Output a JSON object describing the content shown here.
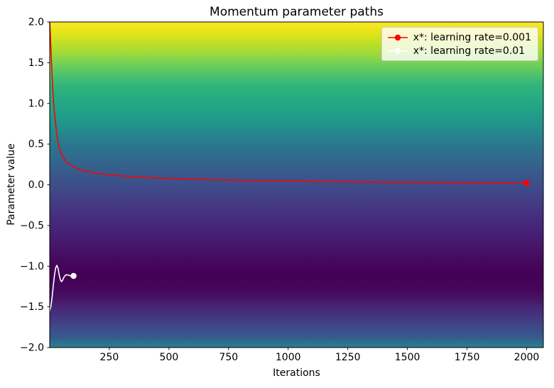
{
  "chart_data": {
    "type": "line",
    "title": "Momentum parameter paths",
    "xlabel": "Iterations",
    "ylabel": "Parameter value",
    "xlim": [
      0,
      2070
    ],
    "ylim": [
      -2.0,
      2.0
    ],
    "x_ticks": [
      250,
      500,
      750,
      1000,
      1250,
      1500,
      1750,
      2000
    ],
    "x_tick_labels": [
      "250",
      "500",
      "750",
      "1000",
      "1250",
      "1500",
      "1750",
      "2000"
    ],
    "y_ticks": [
      2.0,
      1.5,
      1.0,
      0.5,
      0.0,
      -0.5,
      -1.0,
      -1.5,
      -2.0
    ],
    "y_tick_labels": [
      "2.0",
      "1.5",
      "1.0",
      "0.5",
      "0.0",
      "−0.5",
      "−1.0",
      "−1.5",
      "−2.0"
    ],
    "grid": false,
    "legend_position": "upper right",
    "background_colormap": {
      "name": "viridis-vertical-loss-landscape",
      "note": "color encodes loss value as function of parameter value; darkest band near parameter -1.1",
      "stops": [
        [
          0.0,
          "#fde725"
        ],
        [
          0.03,
          "#e7e419"
        ],
        [
          0.06,
          "#c5e021"
        ],
        [
          0.095,
          "#9fda3a"
        ],
        [
          0.125,
          "#77d153"
        ],
        [
          0.16,
          "#4fc46a"
        ],
        [
          0.195,
          "#31b57b"
        ],
        [
          0.25,
          "#22a884"
        ],
        [
          0.3125,
          "#21948c"
        ],
        [
          0.375,
          "#2a788e"
        ],
        [
          0.4375,
          "#33638d"
        ],
        [
          0.5,
          "#3d4e8a"
        ],
        [
          0.5625,
          "#443983"
        ],
        [
          0.625,
          "#46257b"
        ],
        [
          0.69,
          "#471669"
        ],
        [
          0.735,
          "#46085e"
        ],
        [
          0.775,
          "#440154"
        ],
        [
          0.815,
          "#450559"
        ],
        [
          0.85,
          "#471365"
        ],
        [
          0.875,
          "#472575"
        ],
        [
          0.9375,
          "#3f4889"
        ],
        [
          0.97,
          "#365c8d"
        ],
        [
          1.0,
          "#26828e"
        ]
      ]
    },
    "series": [
      {
        "name": "x*: learning rate=0.001",
        "color": "#ff0000",
        "end_marker": [
          2000,
          0.022
        ],
        "points": [
          [
            0,
            2.0
          ],
          [
            3,
            1.82
          ],
          [
            6,
            1.6
          ],
          [
            9,
            1.4
          ],
          [
            12,
            1.22
          ],
          [
            15,
            1.07
          ],
          [
            18,
            0.95
          ],
          [
            21,
            0.85
          ],
          [
            25,
            0.74
          ],
          [
            30,
            0.6
          ],
          [
            35,
            0.52
          ],
          [
            40,
            0.455
          ],
          [
            45,
            0.41
          ],
          [
            50,
            0.375
          ],
          [
            60,
            0.32
          ],
          [
            70,
            0.285
          ],
          [
            80,
            0.258
          ],
          [
            90,
            0.237
          ],
          [
            100,
            0.22
          ],
          [
            120,
            0.195
          ],
          [
            140,
            0.177
          ],
          [
            160,
            0.162
          ],
          [
            180,
            0.151
          ],
          [
            200,
            0.141
          ],
          [
            250,
            0.122
          ],
          [
            300,
            0.109
          ],
          [
            350,
            0.099
          ],
          [
            400,
            0.091
          ],
          [
            450,
            0.084
          ],
          [
            500,
            0.078
          ],
          [
            600,
            0.068
          ],
          [
            700,
            0.061
          ],
          [
            800,
            0.055
          ],
          [
            900,
            0.05
          ],
          [
            1000,
            0.046
          ],
          [
            1100,
            0.042
          ],
          [
            1200,
            0.039
          ],
          [
            1300,
            0.036
          ],
          [
            1400,
            0.033
          ],
          [
            1500,
            0.031
          ],
          [
            1600,
            0.029
          ],
          [
            1700,
            0.027
          ],
          [
            1800,
            0.025
          ],
          [
            1900,
            0.024
          ],
          [
            2000,
            0.022
          ]
        ]
      },
      {
        "name": "x*: learning rate=0.01",
        "color": "#ffffff",
        "end_marker": [
          100,
          -1.12
        ],
        "points": [
          [
            0,
            -1.55
          ],
          [
            5,
            -1.49
          ],
          [
            10,
            -1.38
          ],
          [
            15,
            -1.24
          ],
          [
            20,
            -1.11
          ],
          [
            25,
            -1.02
          ],
          [
            30,
            -0.99
          ],
          [
            35,
            -1.03
          ],
          [
            40,
            -1.11
          ],
          [
            45,
            -1.17
          ],
          [
            50,
            -1.19
          ],
          [
            55,
            -1.165
          ],
          [
            60,
            -1.135
          ],
          [
            65,
            -1.115
          ],
          [
            70,
            -1.105
          ],
          [
            78,
            -1.11
          ],
          [
            86,
            -1.118
          ],
          [
            100,
            -1.12
          ]
        ]
      }
    ]
  }
}
